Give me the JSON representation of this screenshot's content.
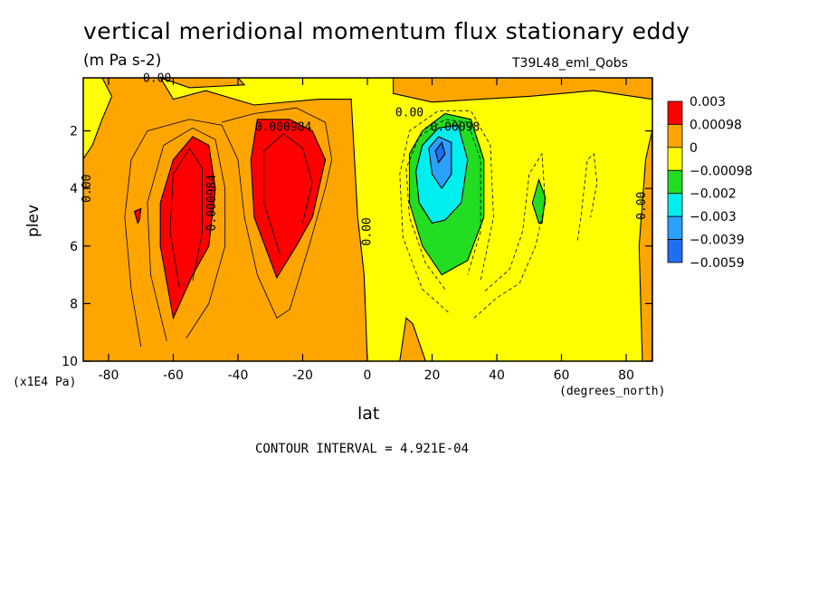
{
  "header": {
    "title": "vertical meridional momentum flux stationary eddy",
    "units": "(m Pa s-2)",
    "dataset": "T39L48_eml_Qobs"
  },
  "footer": {
    "contour_interval": "CONTOUR INTERVAL = 4.921E-04"
  },
  "chart_data": {
    "type": "heatmap",
    "title": "vertical meridional momentum flux stationary eddy",
    "xlabel": "lat",
    "xlabel_units": "(degrees_north)",
    "ylabel": "plev",
    "ylabel_units": "(x1E4 Pa)",
    "xlim": [
      -88,
      88
    ],
    "ylim": [
      10,
      0.2
    ],
    "xticks": [
      "-80",
      "-60",
      "-40",
      "-20",
      "0",
      "20",
      "40",
      "60",
      "80"
    ],
    "yticks": [
      "2",
      "4",
      "6",
      "8",
      "10"
    ],
    "colorbar": {
      "labels": [
        "0.003",
        "0.00098",
        "0",
        "−0.00098",
        "−0.002",
        "−0.003",
        "−0.0039",
        "−0.0059"
      ],
      "colors": [
        "#ff0000",
        "#ffa500",
        "#ffff00",
        "#22dd22",
        "#00eeee",
        "#2aa0ff",
        "#1e6ef0"
      ]
    },
    "contour_labels": [
      {
        "text": "0.00",
        "lat": -65,
        "plev": 0.3
      },
      {
        "text": "0.00",
        "lat": -87,
        "plev": 4.0
      },
      {
        "text": "0.000984",
        "lat": -26,
        "plev": 2.0
      },
      {
        "text": "0.000984",
        "lat": -47,
        "plev": 4.5
      },
      {
        "text": "0.00",
        "lat": 1,
        "plev": 5.5
      },
      {
        "text": "0.00",
        "lat": 13,
        "plev": 1.5
      },
      {
        "text": "-0.00098",
        "lat": 26,
        "plev": 2.0
      },
      {
        "text": "0.00",
        "lat": 88,
        "plev": 4.6
      }
    ],
    "regions": [
      {
        "name": "orange-main",
        "fill": "#ffa500",
        "pts": [
          [
            -88,
            10
          ],
          [
            -88,
            0.15
          ],
          [
            -64,
            0.15
          ],
          [
            -60,
            0.9
          ],
          [
            -50,
            0.6
          ],
          [
            -35,
            1.1
          ],
          [
            -15,
            0.9
          ],
          [
            -5,
            0.9
          ],
          [
            -3,
            5
          ],
          [
            -1,
            7
          ],
          [
            0,
            10
          ]
        ]
      },
      {
        "name": "orange-left-top",
        "fill": "#ffa500",
        "pts": [
          [
            -64,
            0.15
          ],
          [
            -40,
            0.15
          ],
          [
            -38,
            0.4
          ],
          [
            -55,
            0.5
          ],
          [
            -64,
            0.15
          ]
        ]
      },
      {
        "name": "yellow-left-strip",
        "fill": "#ffff00",
        "pts": [
          [
            -88,
            0.15
          ],
          [
            -82,
            0.15
          ],
          [
            -79,
            0.8
          ],
          [
            -82,
            1.6
          ],
          [
            -85,
            2.5
          ],
          [
            -88,
            3.0
          ]
        ]
      },
      {
        "name": "orange-top-right",
        "fill": "#ffa500",
        "pts": [
          [
            8,
            0.15
          ],
          [
            88,
            0.15
          ],
          [
            88,
            0.9
          ],
          [
            70,
            0.6
          ],
          [
            50,
            0.8
          ],
          [
            35,
            0.9
          ],
          [
            20,
            1.0
          ],
          [
            8,
            0.7
          ]
        ]
      },
      {
        "name": "orange-right-strip",
        "fill": "#ffa500",
        "pts": [
          [
            85,
            10
          ],
          [
            84,
            6
          ],
          [
            86,
            3
          ],
          [
            88,
            2
          ],
          [
            88,
            10
          ]
        ]
      },
      {
        "name": "orange-bottom-right",
        "fill": "#ffa500",
        "pts": [
          [
            10,
            10
          ],
          [
            12,
            8.5
          ],
          [
            14,
            8.7
          ],
          [
            18,
            10
          ]
        ]
      },
      {
        "name": "red-south-1",
        "fill": "#ff0000",
        "pts": [
          [
            -60,
            8.5
          ],
          [
            -64,
            6
          ],
          [
            -64,
            4.5
          ],
          [
            -60,
            3
          ],
          [
            -54,
            2.2
          ],
          [
            -49,
            2.5
          ],
          [
            -47,
            4
          ],
          [
            -49,
            6
          ],
          [
            -54,
            7
          ]
        ]
      },
      {
        "name": "red-south-2",
        "fill": "#ff0000",
        "pts": [
          [
            -28,
            7.1
          ],
          [
            -35,
            5
          ],
          [
            -36,
            3
          ],
          [
            -34,
            1.6
          ],
          [
            -24,
            1.6
          ],
          [
            -17,
            2.0
          ],
          [
            -13,
            3.0
          ],
          [
            -17,
            5
          ],
          [
            -22,
            6
          ]
        ]
      },
      {
        "name": "red-dot",
        "fill": "#ff0000",
        "pts": [
          [
            -71,
            5.2
          ],
          [
            -72,
            4.8
          ],
          [
            -70,
            4.7
          ],
          [
            -70.5,
            5.1
          ]
        ]
      },
      {
        "name": "green-north",
        "fill": "#22dd22",
        "pts": [
          [
            23,
            7.0
          ],
          [
            17,
            6.0
          ],
          [
            13,
            4.5
          ],
          [
            13,
            2.8
          ],
          [
            17,
            2.0
          ],
          [
            24,
            1.4
          ],
          [
            32,
            1.6
          ],
          [
            36,
            3
          ],
          [
            36,
            5
          ],
          [
            31,
            6.5
          ]
        ]
      },
      {
        "name": "green-spot",
        "fill": "#22dd22",
        "pts": [
          [
            53,
            5.2
          ],
          [
            51,
            4.5
          ],
          [
            53,
            3.7
          ],
          [
            55,
            4.3
          ],
          [
            54,
            5.2
          ]
        ]
      },
      {
        "name": "cyan-north",
        "fill": "#00eeee",
        "pts": [
          [
            20,
            5.2
          ],
          [
            16,
            4.5
          ],
          [
            15,
            3.4
          ],
          [
            17,
            2.5
          ],
          [
            22,
            1.9
          ],
          [
            28,
            1.8
          ],
          [
            31,
            3
          ],
          [
            29,
            4.5
          ],
          [
            24,
            5.1
          ]
        ]
      },
      {
        "name": "blue-north",
        "fill": "#2aa0ff",
        "pts": [
          [
            23,
            4.0
          ],
          [
            20,
            3.5
          ],
          [
            19,
            2.6
          ],
          [
            22,
            2.2
          ],
          [
            26,
            2.4
          ],
          [
            26,
            3.5
          ]
        ]
      },
      {
        "name": "darkblue-north",
        "fill": "#1e6ef0",
        "pts": [
          [
            22,
            3.1
          ],
          [
            21,
            2.7
          ],
          [
            23,
            2.4
          ],
          [
            24,
            2.8
          ]
        ]
      }
    ],
    "contours": [
      {
        "dash": false,
        "pts": [
          [
            -70,
            9.5
          ],
          [
            -73,
            7.5
          ],
          [
            -75,
            5
          ],
          [
            -73,
            3
          ],
          [
            -68,
            2.0
          ],
          [
            -55,
            1.6
          ],
          [
            -45,
            1.8
          ],
          [
            -40,
            3
          ],
          [
            -38,
            5
          ],
          [
            -34,
            7
          ],
          [
            -28,
            8.5
          ],
          [
            -24,
            8.2
          ],
          [
            -18,
            6
          ],
          [
            -13,
            4
          ],
          [
            -11,
            3
          ],
          [
            -13,
            1.7
          ],
          [
            -22,
            1.2
          ],
          [
            -35,
            1.4
          ],
          [
            -45,
            1.7
          ]
        ]
      },
      {
        "dash": false,
        "pts": [
          [
            -62,
            9.3
          ],
          [
            -67,
            7
          ],
          [
            -68,
            4.5
          ],
          [
            -63,
            2.5
          ],
          [
            -54,
            1.9
          ],
          [
            -47,
            2.3
          ],
          [
            -44,
            4
          ],
          [
            -44,
            6
          ],
          [
            -49,
            8
          ],
          [
            -56,
            9.2
          ]
        ]
      },
      {
        "dash": false,
        "pts": [
          [
            -58,
            7.5
          ],
          [
            -61,
            5.5
          ],
          [
            -60,
            3.5
          ],
          [
            -55,
            2.6
          ],
          [
            -51,
            3.3
          ],
          [
            -51,
            5.5
          ],
          [
            -54,
            7.2
          ]
        ]
      },
      {
        "dash": false,
        "pts": [
          [
            -27,
            6.3
          ],
          [
            -32,
            4.5
          ],
          [
            -32,
            2.7
          ],
          [
            -26,
            2.1
          ],
          [
            -20,
            2.6
          ],
          [
            -17,
            3.8
          ],
          [
            -20,
            5.2
          ]
        ]
      },
      {
        "dash": true,
        "pts": [
          [
            25,
            8.3
          ],
          [
            17,
            7.5
          ],
          [
            11,
            5.7
          ],
          [
            10,
            3.5
          ],
          [
            13,
            2.0
          ],
          [
            22,
            1.3
          ],
          [
            32,
            1.3
          ],
          [
            38,
            2.5
          ],
          [
            39,
            5
          ],
          [
            35,
            7.2
          ]
        ]
      },
      {
        "dash": true,
        "pts": [
          [
            24,
            7.5
          ],
          [
            18,
            6.6
          ],
          [
            13,
            5
          ],
          [
            12,
            3.3
          ],
          [
            16,
            2.2
          ],
          [
            24,
            1.6
          ],
          [
            31,
            1.7
          ],
          [
            35,
            3
          ],
          [
            35,
            5.5
          ],
          [
            31,
            7
          ]
        ]
      },
      {
        "dash": true,
        "pts": [
          [
            33,
            8.5
          ],
          [
            40,
            7.8
          ],
          [
            47,
            7.3
          ],
          [
            52,
            6
          ],
          [
            55,
            4.5
          ],
          [
            54,
            2.8
          ],
          [
            50,
            3.5
          ],
          [
            48,
            5.5
          ],
          [
            44,
            6.8
          ],
          [
            36,
            7.6
          ]
        ]
      },
      {
        "dash": true,
        "pts": [
          [
            65,
            5.8
          ],
          [
            66,
            5
          ],
          [
            67,
            4
          ],
          [
            68,
            3.0
          ],
          [
            70,
            2.8
          ],
          [
            71,
            3.8
          ],
          [
            69,
            5
          ]
        ]
      }
    ]
  }
}
